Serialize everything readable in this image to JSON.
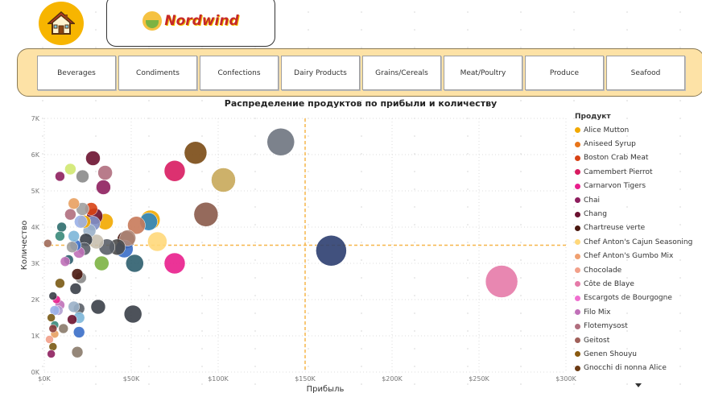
{
  "logo": {
    "text": "Nordwind"
  },
  "categories": [
    "Beverages",
    "Condiments",
    "Confections",
    "Dairy Products",
    "Grains/Cereals",
    "Meat/Poultry",
    "Produce",
    "Seafood"
  ],
  "chart_data": {
    "type": "scatter",
    "title": "Распределение продуктов по прибыли и количеству",
    "xlabel": "Прибыль",
    "ylabel": "Количество",
    "xlim": [
      0,
      300000
    ],
    "ylim": [
      0,
      7000
    ],
    "x_ticks": [
      "$0K",
      "$50K",
      "$100K",
      "$150K",
      "$200K",
      "$250K",
      "$300K"
    ],
    "y_ticks": [
      "0K",
      "1K",
      "2K",
      "3K",
      "4K",
      "5K",
      "6K",
      "7K"
    ],
    "reference_lines": {
      "x": 150000,
      "y": 3500
    },
    "legend_title": "Продукт",
    "legend": [
      {
        "name": "Alice Mutton",
        "color": "#f2a900"
      },
      {
        "name": "Aniseed Syrup",
        "color": "#e8751a"
      },
      {
        "name": "Boston Crab Meat",
        "color": "#d84315"
      },
      {
        "name": "Camembert Pierrot",
        "color": "#d81b60"
      },
      {
        "name": "Carnarvon Tigers",
        "color": "#e91e8c"
      },
      {
        "name": "Chai",
        "color": "#8e1f5e"
      },
      {
        "name": "Chang",
        "color": "#6b1230"
      },
      {
        "name": "Chartreuse verte",
        "color": "#4a1810"
      },
      {
        "name": "Chef Anton's Cajun Seasoning",
        "color": "#ffd87a"
      },
      {
        "name": "Chef Anton's Gumbo Mix",
        "color": "#f0a070"
      },
      {
        "name": "Chocolade",
        "color": "#f2a08a"
      },
      {
        "name": "Côte de Blaye",
        "color": "#e57aa8"
      },
      {
        "name": "Escargots de Bourgogne",
        "color": "#f06ecf"
      },
      {
        "name": "Filo Mix",
        "color": "#c070b8"
      },
      {
        "name": "Flotemysost",
        "color": "#b06e7e"
      },
      {
        "name": "Geitost",
        "color": "#a0605a"
      },
      {
        "name": "Genen Shouyu",
        "color": "#8a5a10"
      },
      {
        "name": "Gnocchi di nonna Alice",
        "color": "#6b3a14"
      }
    ],
    "points": [
      {
        "x": 263000,
        "y": 2500,
        "s": 20,
        "c": "#e57aa8"
      },
      {
        "x": 165000,
        "y": 3350,
        "s": 19,
        "c": "#2c3e70"
      },
      {
        "x": 136000,
        "y": 6350,
        "s": 17,
        "c": "#6e7480"
      },
      {
        "x": 103000,
        "y": 5300,
        "s": 15,
        "c": "#c8a85a"
      },
      {
        "x": 93000,
        "y": 4350,
        "s": 15,
        "c": "#8a5a4a"
      },
      {
        "x": 87000,
        "y": 6050,
        "s": 14,
        "c": "#7a4a14"
      },
      {
        "x": 75000,
        "y": 5550,
        "s": 13,
        "c": "#d81b60"
      },
      {
        "x": 75000,
        "y": 3000,
        "s": 13,
        "c": "#e91e8c"
      },
      {
        "x": 65000,
        "y": 3600,
        "s": 12,
        "c": "#ffd87a"
      },
      {
        "x": 61000,
        "y": 4200,
        "s": 12,
        "c": "#f2a900"
      },
      {
        "x": 60000,
        "y": 4150,
        "s": 11,
        "c": "#2e86c1"
      },
      {
        "x": 53000,
        "y": 4050,
        "s": 11,
        "c": "#c87a5a"
      },
      {
        "x": 52000,
        "y": 3000,
        "s": 11,
        "c": "#2e5e6e"
      },
      {
        "x": 51000,
        "y": 1600,
        "s": 11,
        "c": "#3a3f48"
      },
      {
        "x": 47000,
        "y": 3650,
        "s": 11,
        "c": "#4a1810"
      },
      {
        "x": 46000,
        "y": 3400,
        "s": 11,
        "c": "#3a6ec8"
      },
      {
        "x": 48000,
        "y": 3700,
        "s": 10,
        "c": "#b08a7a"
      },
      {
        "x": 42000,
        "y": 3450,
        "s": 10,
        "c": "#4a4a4a"
      },
      {
        "x": 36000,
        "y": 3450,
        "s": 10,
        "c": "#5a5f68"
      },
      {
        "x": 35000,
        "y": 4150,
        "s": 10,
        "c": "#f2a900"
      },
      {
        "x": 35000,
        "y": 5500,
        "s": 9,
        "c": "#b06e7e"
      },
      {
        "x": 34000,
        "y": 5100,
        "s": 9,
        "c": "#8e1f5e"
      },
      {
        "x": 33000,
        "y": 3000,
        "s": 9,
        "c": "#7cb342"
      },
      {
        "x": 31000,
        "y": 1800,
        "s": 9,
        "c": "#3a3f48"
      },
      {
        "x": 30000,
        "y": 3600,
        "s": 9,
        "c": "#c8c0b0"
      },
      {
        "x": 29000,
        "y": 4300,
        "s": 10,
        "c": "#6b1230"
      },
      {
        "x": 28000,
        "y": 5900,
        "s": 9,
        "c": "#6b1230"
      },
      {
        "x": 28000,
        "y": 4100,
        "s": 9,
        "c": "#8090c8"
      },
      {
        "x": 27000,
        "y": 4500,
        "s": 8,
        "c": "#d84315"
      },
      {
        "x": 26000,
        "y": 3900,
        "s": 8,
        "c": "#9ab0c8"
      },
      {
        "x": 24000,
        "y": 3650,
        "s": 8,
        "c": "#3a3f48"
      },
      {
        "x": 23000,
        "y": 3400,
        "s": 8,
        "c": "#5a5f68"
      },
      {
        "x": 23000,
        "y": 4150,
        "s": 8,
        "c": "#f2a900"
      },
      {
        "x": 22000,
        "y": 5400,
        "s": 8,
        "c": "#8a8a8a"
      },
      {
        "x": 22000,
        "y": 4500,
        "s": 8,
        "c": "#a0a0a0"
      },
      {
        "x": 21000,
        "y": 4150,
        "s": 8,
        "c": "#9ab0e8"
      },
      {
        "x": 21000,
        "y": 2600,
        "s": 7,
        "c": "#8a8a8a"
      },
      {
        "x": 20000,
        "y": 3300,
        "s": 7,
        "c": "#c070b8"
      },
      {
        "x": 20000,
        "y": 1750,
        "s": 7,
        "c": "#5a5f68"
      },
      {
        "x": 20000,
        "y": 1500,
        "s": 7,
        "c": "#7cb6d8"
      },
      {
        "x": 20000,
        "y": 1100,
        "s": 7,
        "c": "#3a6ec8"
      },
      {
        "x": 19000,
        "y": 2700,
        "s": 7,
        "c": "#4a1810"
      },
      {
        "x": 19000,
        "y": 550,
        "s": 7,
        "c": "#8a7a6a"
      },
      {
        "x": 18000,
        "y": 3500,
        "s": 7,
        "c": "#3a6ec8"
      },
      {
        "x": 18000,
        "y": 2300,
        "s": 7,
        "c": "#3a3f48"
      },
      {
        "x": 17000,
        "y": 4650,
        "s": 7,
        "c": "#e8a060"
      },
      {
        "x": 17000,
        "y": 3750,
        "s": 7,
        "c": "#7cb6d8"
      },
      {
        "x": 17000,
        "y": 1800,
        "s": 7,
        "c": "#9ab0c8"
      },
      {
        "x": 16000,
        "y": 3450,
        "s": 7,
        "c": "#a0a0a0"
      },
      {
        "x": 16000,
        "y": 1450,
        "s": 6,
        "c": "#6b1230"
      },
      {
        "x": 15000,
        "y": 5600,
        "s": 7,
        "c": "#d0e870"
      },
      {
        "x": 15000,
        "y": 4350,
        "s": 7,
        "c": "#b06e7e"
      },
      {
        "x": 14000,
        "y": 3100,
        "s": 6,
        "c": "#2e5e6e"
      },
      {
        "x": 12000,
        "y": 3050,
        "s": 6,
        "c": "#c070b8"
      },
      {
        "x": 11000,
        "y": 1200,
        "s": 6,
        "c": "#8a7a6a"
      },
      {
        "x": 10000,
        "y": 4000,
        "s": 6,
        "c": "#2e6e6e"
      },
      {
        "x": 9000,
        "y": 3750,
        "s": 6,
        "c": "#3a8a7a"
      },
      {
        "x": 9000,
        "y": 5400,
        "s": 6,
        "c": "#8e1f5e"
      },
      {
        "x": 9000,
        "y": 2450,
        "s": 6,
        "c": "#7a5a14"
      },
      {
        "x": 9000,
        "y": 1850,
        "s": 6,
        "c": "#c070b8"
      },
      {
        "x": 8000,
        "y": 1700,
        "s": 6,
        "c": "#b0a0d0"
      },
      {
        "x": 7000,
        "y": 2000,
        "s": 5,
        "c": "#e91e8c"
      },
      {
        "x": 6000,
        "y": 1700,
        "s": 6,
        "c": "#9ab0e8"
      },
      {
        "x": 6000,
        "y": 1300,
        "s": 5,
        "c": "#3a8a7a"
      },
      {
        "x": 6000,
        "y": 1050,
        "s": 5,
        "c": "#e8a060"
      },
      {
        "x": 5000,
        "y": 2100,
        "s": 5,
        "c": "#3a3f48"
      },
      {
        "x": 5000,
        "y": 1200,
        "s": 5,
        "c": "#8a3a3a"
      },
      {
        "x": 5000,
        "y": 700,
        "s": 5,
        "c": "#7a5a14"
      },
      {
        "x": 4000,
        "y": 1500,
        "s": 5,
        "c": "#7a5a14"
      },
      {
        "x": 4000,
        "y": 500,
        "s": 5,
        "c": "#8e1f5e"
      },
      {
        "x": 3000,
        "y": 900,
        "s": 5,
        "c": "#f2a08a"
      },
      {
        "x": 2000,
        "y": 3550,
        "s": 5,
        "c": "#a06a5a"
      }
    ]
  }
}
